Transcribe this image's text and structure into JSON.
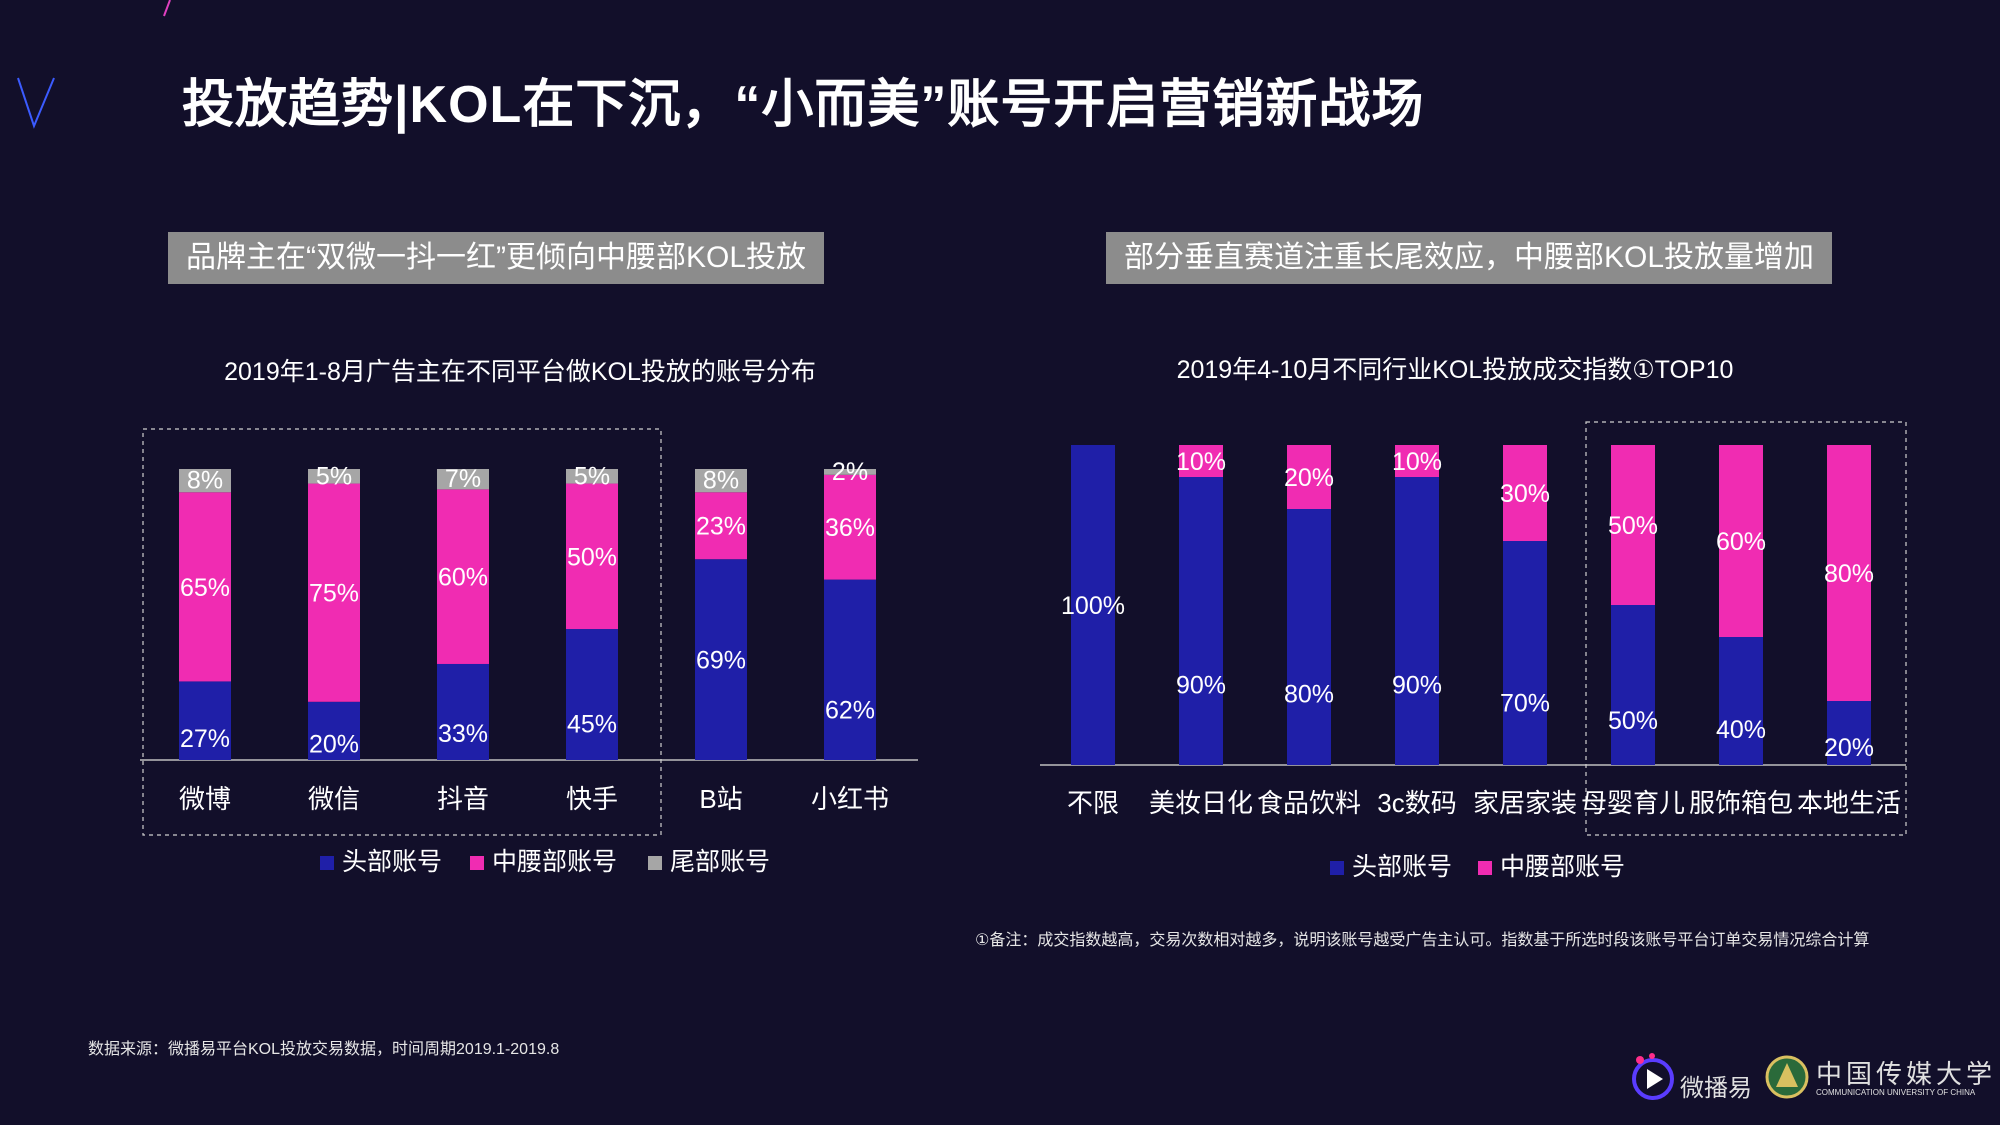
{
  "page": {
    "title": "投放趋势|KOL在下沉，“小而美”账号开启营销新战场",
    "left_banner": "品牌主在“双微一抖一红”更倾向中腰部KOL投放",
    "right_banner": "部分垂直赛道注重长尾效应，中腰部KOL投放量增加",
    "footnote": "①备注：成交指数越高，交易次数相对越多，说明该账号越受广告主认可。指数基于所选时段该账号平台订单交易情况综合计算",
    "source": "数据来源：微播易平台KOL投放交易数据，时间周期2019.1-2019.8",
    "logo_weiboyi": "微播易",
    "logo_cuc_cn": "中国传媒大学",
    "logo_cuc_en": "COMMUNICATION UNIVERSITY OF CHINA"
  },
  "colors": {
    "background": "#120f2a",
    "head": "#1f1fa8",
    "mid": "#f02cb2",
    "tail": "#a6a6a6",
    "banner": "#8c8c8c"
  },
  "chart_data": [
    {
      "type": "bar",
      "stacked": true,
      "title": "2019年1-8月广告主在不同平台做KOL投放的账号分布",
      "categories": [
        "微博",
        "微信",
        "抖音",
        "快手",
        "B站",
        "小红书"
      ],
      "series": [
        {
          "name": "头部账号",
          "values": [
            27,
            20,
            33,
            45,
            69,
            62
          ]
        },
        {
          "name": "中腰部账号",
          "values": [
            65,
            75,
            60,
            50,
            23,
            36
          ]
        },
        {
          "name": "尾部账号",
          "values": [
            8,
            5,
            7,
            5,
            8,
            2
          ]
        }
      ],
      "labels": [
        [
          "27%",
          "20%",
          "33%",
          "45%",
          "69%",
          "62%"
        ],
        [
          "65%",
          "75%",
          "60%",
          "50%",
          "23%",
          "36%"
        ],
        [
          "8%",
          "5%",
          "7%",
          "5%",
          "8%",
          "2%"
        ]
      ],
      "unit": "%",
      "ylim": [
        0,
        100
      ],
      "highlight": "微博–快手",
      "legend": "bottom"
    },
    {
      "type": "bar",
      "stacked": true,
      "title": "2019年4-10月不同行业KOL投放成交指数①TOP10",
      "categories": [
        "不限",
        "美妆日化",
        "食品饮料",
        "3c数码",
        "家居家装",
        "母婴育儿",
        "服饰箱包",
        "本地生活"
      ],
      "series": [
        {
          "name": "头部账号",
          "values": [
            100,
            90,
            80,
            90,
            70,
            50,
            40,
            20
          ]
        },
        {
          "name": "中腰部账号",
          "values": [
            0,
            10,
            20,
            10,
            30,
            50,
            60,
            80
          ]
        }
      ],
      "labels": [
        [
          "100%",
          "90%",
          "80%",
          "90%",
          "70%",
          "50%",
          "40%",
          "20%"
        ],
        [
          "",
          "10%",
          "20%",
          "10%",
          "30%",
          "50%",
          "60%",
          "80%"
        ]
      ],
      "unit": "%",
      "ylim": [
        0,
        100
      ],
      "highlight": "母婴育儿–本地生活",
      "legend": "bottom"
    }
  ]
}
